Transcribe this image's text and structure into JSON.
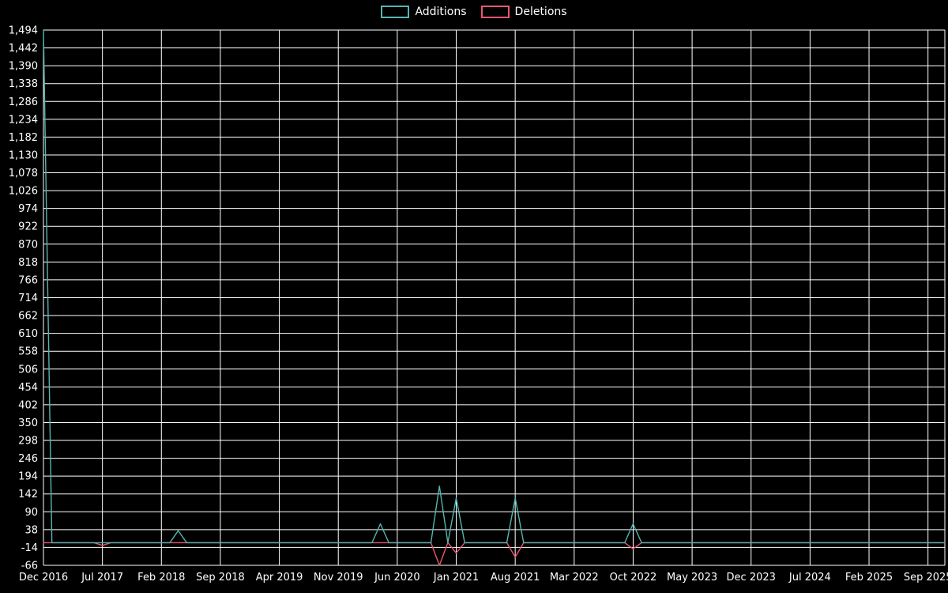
{
  "colors": {
    "background": "#000000",
    "grid": "#ffffff",
    "text": "#ffffff",
    "additions": "#55b5b1",
    "deletions": "#e8566f"
  },
  "chart_data": {
    "type": "line",
    "title": "",
    "legend_position": "top-center",
    "grid": {
      "show": true,
      "color": "#ffffff"
    },
    "x_axis": {
      "start_month": "2016-12",
      "end_month": "2025-11",
      "tick_every_months": 7,
      "tick_labels": [
        "Dec 2016",
        "Jul 2017",
        "Feb 2018",
        "Sep 2018",
        "Apr 2019",
        "Nov 2019",
        "Jun 2020",
        "Jan 2021",
        "Aug 2021",
        "Mar 2022",
        "Oct 2022",
        "May 2023",
        "Dec 2023",
        "Jul 2024",
        "Feb 2025",
        "Sep 2025"
      ]
    },
    "y_axis": {
      "min": -66,
      "max": 1494,
      "step": 52,
      "tick_labels": [
        "1,494",
        "1,442",
        "1,390",
        "1,338",
        "1,286",
        "1,234",
        "1,182",
        "1,130",
        "1,078",
        "1,026",
        "974",
        "922",
        "870",
        "818",
        "766",
        "714",
        "662",
        "610",
        "558",
        "506",
        "454",
        "402",
        "350",
        "298",
        "246",
        "194",
        "142",
        "90",
        "38",
        "-14",
        "-66"
      ]
    },
    "series": [
      {
        "name": "Additions",
        "color": "#55b5b1",
        "default_value": 0,
        "points": [
          {
            "month": "2016-12",
            "value": 1494
          },
          {
            "month": "2018-04",
            "value": 35
          },
          {
            "month": "2020-04",
            "value": 55
          },
          {
            "month": "2020-11",
            "value": 165
          },
          {
            "month": "2021-01",
            "value": 130
          },
          {
            "month": "2021-08",
            "value": 130
          },
          {
            "month": "2022-10",
            "value": 55
          }
        ]
      },
      {
        "name": "Deletions",
        "color": "#e8566f",
        "default_value": 0,
        "points": [
          {
            "month": "2017-07",
            "value": -8
          },
          {
            "month": "2020-11",
            "value": -66
          },
          {
            "month": "2021-01",
            "value": -30
          },
          {
            "month": "2021-08",
            "value": -42
          },
          {
            "month": "2022-10",
            "value": -18
          }
        ]
      }
    ]
  }
}
